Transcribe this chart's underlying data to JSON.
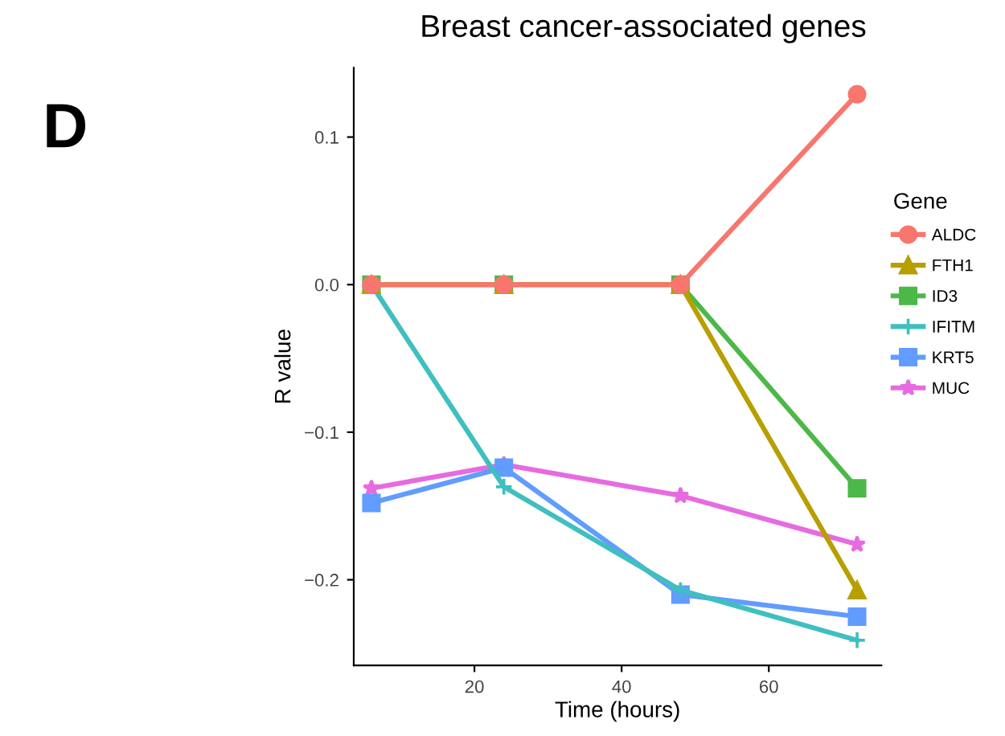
{
  "chart_data": {
    "type": "line",
    "title": "Breast cancer-associated genes",
    "xlabel": "Time (hours)",
    "ylabel": "R value",
    "legend_title": "Gene",
    "annotations": [
      "D"
    ],
    "x": [
      6,
      24,
      48,
      72
    ],
    "series": [
      {
        "name": "ALDC",
        "color": "#f8766d",
        "marker": "circle",
        "values": [
          0,
          0,
          0,
          0.129
        ]
      },
      {
        "name": "FTH1",
        "color": "#b79f00",
        "marker": "triangle",
        "values": [
          0,
          0,
          0,
          -0.207
        ]
      },
      {
        "name": "ID3",
        "color": "#4cb848",
        "marker": "square",
        "values": [
          0,
          0,
          0,
          -0.138
        ]
      },
      {
        "name": "IFITM",
        "color": "#3fbfc0",
        "marker": "cross",
        "values": [
          0,
          -0.137,
          -0.207,
          -0.241
        ]
      },
      {
        "name": "KRT5",
        "color": "#619cff",
        "marker": "square",
        "values": [
          -0.148,
          -0.124,
          -0.21,
          -0.225
        ]
      },
      {
        "name": "MUC",
        "color": "#e76be0",
        "marker": "star",
        "values": [
          -0.138,
          -0.122,
          -0.143,
          -0.176
        ]
      }
    ],
    "xlim": [
      3.6,
      75.3
    ],
    "ylim": [
      -0.258,
      0.147
    ],
    "xticks": [
      20,
      40,
      60
    ],
    "yticks": [
      {
        "value": 0.1,
        "label": "0.1"
      },
      {
        "value": 0.0,
        "label": "0.0"
      },
      {
        "value": -0.1,
        "label": "−0.1"
      },
      {
        "value": -0.2,
        "label": "−0.2"
      }
    ],
    "grid": false,
    "legend": "right",
    "line_style": "solid"
  }
}
